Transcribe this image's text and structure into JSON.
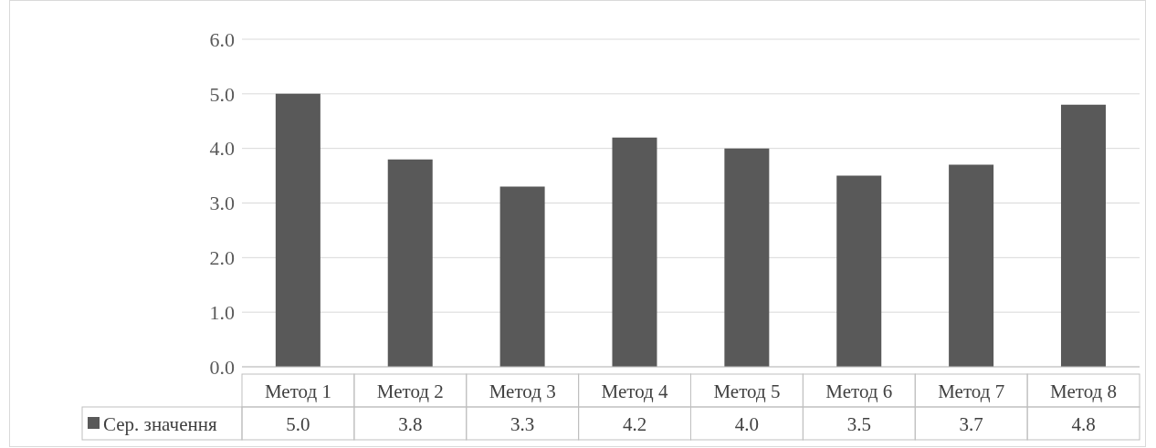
{
  "chart_data": {
    "type": "bar",
    "categories": [
      "Метод 1",
      "Метод 2",
      "Метод 3",
      "Метод 4",
      "Метод 5",
      "Метод 6",
      "Метод 7",
      "Метод 8"
    ],
    "series": [
      {
        "name": "Сер. значення",
        "color": "#595959",
        "values": [
          5.0,
          3.8,
          3.3,
          4.2,
          4.0,
          3.5,
          3.7,
          4.8
        ],
        "value_labels": [
          "5.0",
          "3.8",
          "3.3",
          "4.2",
          "4.0",
          "3.5",
          "3.7",
          "4.8"
        ]
      }
    ],
    "ylim": [
      0,
      6
    ],
    "yticks": [
      {
        "value": 0,
        "label": "0.0"
      },
      {
        "value": 1,
        "label": "1.0"
      },
      {
        "value": 2,
        "label": "2.0"
      },
      {
        "value": 3,
        "label": "3.0"
      },
      {
        "value": 4,
        "label": "4.0"
      },
      {
        "value": 5,
        "label": "5.0"
      },
      {
        "value": 6,
        "label": "6.0"
      }
    ],
    "grid": "y",
    "legend": "bottom"
  }
}
